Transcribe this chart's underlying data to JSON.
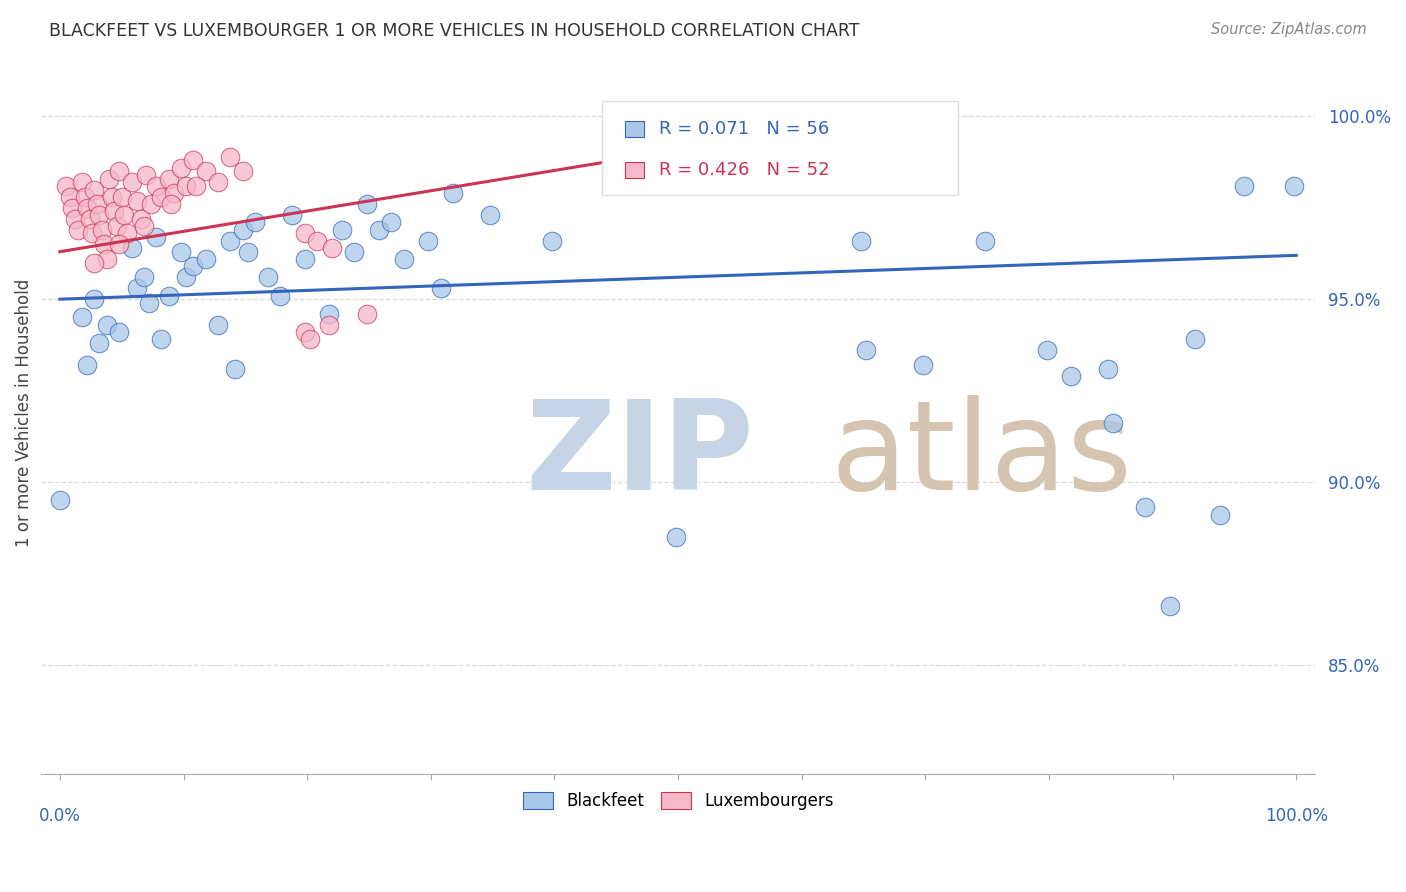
{
  "title": "BLACKFEET VS LUXEMBOURGER 1 OR MORE VEHICLES IN HOUSEHOLD CORRELATION CHART",
  "source": "Source: ZipAtlas.com",
  "ylabel": "1 or more Vehicles in Household",
  "yticks": [
    85.0,
    90.0,
    95.0,
    100.0
  ],
  "ytick_labels": [
    "85.0%",
    "90.0%",
    "95.0%",
    "100.0%"
  ],
  "blue_color": "#a8c8e8",
  "pink_color": "#f5b8c8",
  "blue_line_color": "#3366bb",
  "pink_line_color": "#cc3355",
  "watermark_zip_color": "#c0d0e0",
  "watermark_atlas_color": "#d0c0b0",
  "axis_label_color": "#3366bb",
  "grid_color": "#cccccc",
  "title_color": "#333333",
  "blue_scatter": [
    [
      0.0,
      89.5
    ],
    [
      0.018,
      94.5
    ],
    [
      0.022,
      93.2
    ],
    [
      0.028,
      95.0
    ],
    [
      0.032,
      93.8
    ],
    [
      0.038,
      94.3
    ],
    [
      0.048,
      94.1
    ],
    [
      0.058,
      96.4
    ],
    [
      0.062,
      95.3
    ],
    [
      0.068,
      95.6
    ],
    [
      0.072,
      94.9
    ],
    [
      0.078,
      96.7
    ],
    [
      0.082,
      93.9
    ],
    [
      0.088,
      95.1
    ],
    [
      0.098,
      96.3
    ],
    [
      0.102,
      95.6
    ],
    [
      0.108,
      95.9
    ],
    [
      0.118,
      96.1
    ],
    [
      0.128,
      94.3
    ],
    [
      0.138,
      96.6
    ],
    [
      0.142,
      93.1
    ],
    [
      0.148,
      96.9
    ],
    [
      0.152,
      96.3
    ],
    [
      0.158,
      97.1
    ],
    [
      0.168,
      95.6
    ],
    [
      0.178,
      95.1
    ],
    [
      0.188,
      97.3
    ],
    [
      0.198,
      96.1
    ],
    [
      0.218,
      94.6
    ],
    [
      0.228,
      96.9
    ],
    [
      0.238,
      96.3
    ],
    [
      0.248,
      97.6
    ],
    [
      0.258,
      96.9
    ],
    [
      0.268,
      97.1
    ],
    [
      0.278,
      96.1
    ],
    [
      0.298,
      96.6
    ],
    [
      0.308,
      95.3
    ],
    [
      0.318,
      97.9
    ],
    [
      0.348,
      97.3
    ],
    [
      0.398,
      96.6
    ],
    [
      0.498,
      88.5
    ],
    [
      0.648,
      96.6
    ],
    [
      0.652,
      93.6
    ],
    [
      0.698,
      93.2
    ],
    [
      0.748,
      96.6
    ],
    [
      0.798,
      93.6
    ],
    [
      0.818,
      92.9
    ],
    [
      0.848,
      93.1
    ],
    [
      0.852,
      91.6
    ],
    [
      0.878,
      89.3
    ],
    [
      0.898,
      86.6
    ],
    [
      0.918,
      93.9
    ],
    [
      0.938,
      89.1
    ],
    [
      0.958,
      98.1
    ],
    [
      0.998,
      98.1
    ]
  ],
  "pink_scatter": [
    [
      0.005,
      98.1
    ],
    [
      0.008,
      97.8
    ],
    [
      0.01,
      97.5
    ],
    [
      0.012,
      97.2
    ],
    [
      0.015,
      96.9
    ],
    [
      0.018,
      98.2
    ],
    [
      0.02,
      97.8
    ],
    [
      0.022,
      97.5
    ],
    [
      0.024,
      97.2
    ],
    [
      0.026,
      96.8
    ],
    [
      0.028,
      98.0
    ],
    [
      0.03,
      97.6
    ],
    [
      0.032,
      97.3
    ],
    [
      0.034,
      96.9
    ],
    [
      0.036,
      96.5
    ],
    [
      0.038,
      96.1
    ],
    [
      0.04,
      98.3
    ],
    [
      0.042,
      97.8
    ],
    [
      0.044,
      97.4
    ],
    [
      0.046,
      97.0
    ],
    [
      0.048,
      98.5
    ],
    [
      0.05,
      97.8
    ],
    [
      0.052,
      97.3
    ],
    [
      0.054,
      96.8
    ],
    [
      0.058,
      98.2
    ],
    [
      0.062,
      97.7
    ],
    [
      0.066,
      97.2
    ],
    [
      0.07,
      98.4
    ],
    [
      0.074,
      97.6
    ],
    [
      0.078,
      98.1
    ],
    [
      0.082,
      97.8
    ],
    [
      0.088,
      98.3
    ],
    [
      0.092,
      97.9
    ],
    [
      0.098,
      98.6
    ],
    [
      0.102,
      98.1
    ],
    [
      0.108,
      98.8
    ],
    [
      0.118,
      98.5
    ],
    [
      0.128,
      98.2
    ],
    [
      0.138,
      98.9
    ],
    [
      0.148,
      98.5
    ],
    [
      0.198,
      94.1
    ],
    [
      0.202,
      93.9
    ],
    [
      0.218,
      94.3
    ],
    [
      0.248,
      94.6
    ],
    [
      0.198,
      96.8
    ],
    [
      0.208,
      96.6
    ],
    [
      0.22,
      96.4
    ],
    [
      0.11,
      98.1
    ],
    [
      0.09,
      97.6
    ],
    [
      0.068,
      97.0
    ],
    [
      0.048,
      96.5
    ],
    [
      0.028,
      96.0
    ]
  ],
  "blue_line_x": [
    0.0,
    1.0
  ],
  "blue_line_y": [
    95.0,
    96.2
  ],
  "pink_line_x": [
    0.0,
    0.45
  ],
  "pink_line_y": [
    96.3,
    98.8
  ],
  "figsize": [
    14.06,
    8.92
  ],
  "dpi": 100,
  "xlim": [
    -0.015,
    1.015
  ],
  "ylim": [
    82.0,
    101.8
  ]
}
